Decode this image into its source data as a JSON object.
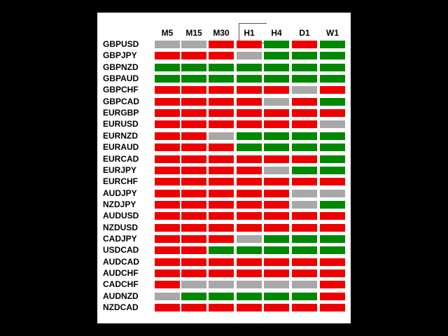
{
  "colors": {
    "red": "#ee0000",
    "green": "#008800",
    "gray": "#a8a8a8"
  },
  "timeframes": [
    "M5",
    "M15",
    "M30",
    "H1",
    "H4",
    "D1",
    "W1"
  ],
  "selected_timeframe": "H1",
  "rows": [
    {
      "pair": "GBPUSD",
      "states": [
        "gray",
        "gray",
        "red",
        "red",
        "green",
        "red",
        "green"
      ]
    },
    {
      "pair": "GBPJPY",
      "states": [
        "red",
        "red",
        "red",
        "gray",
        "green",
        "green",
        "green"
      ]
    },
    {
      "pair": "GBPNZD",
      "states": [
        "green",
        "green",
        "green",
        "green",
        "green",
        "green",
        "green"
      ]
    },
    {
      "pair": "GBPAUD",
      "states": [
        "green",
        "green",
        "green",
        "green",
        "green",
        "green",
        "green"
      ]
    },
    {
      "pair": "GBPCHF",
      "states": [
        "red",
        "red",
        "red",
        "red",
        "red",
        "gray",
        "red"
      ]
    },
    {
      "pair": "GBPCAD",
      "states": [
        "red",
        "red",
        "red",
        "red",
        "gray",
        "red",
        "green"
      ]
    },
    {
      "pair": "EURGBP",
      "states": [
        "red",
        "red",
        "red",
        "red",
        "red",
        "red",
        "red"
      ]
    },
    {
      "pair": "EURUSD",
      "states": [
        "red",
        "red",
        "red",
        "red",
        "red",
        "red",
        "gray"
      ]
    },
    {
      "pair": "EURNZD",
      "states": [
        "red",
        "red",
        "gray",
        "green",
        "green",
        "green",
        "green"
      ]
    },
    {
      "pair": "EURAUD",
      "states": [
        "red",
        "red",
        "red",
        "green",
        "green",
        "green",
        "green"
      ]
    },
    {
      "pair": "EURCAD",
      "states": [
        "red",
        "red",
        "red",
        "red",
        "red",
        "red",
        "green"
      ]
    },
    {
      "pair": "EURJPY",
      "states": [
        "red",
        "red",
        "red",
        "red",
        "gray",
        "green",
        "green"
      ]
    },
    {
      "pair": "EURCHF",
      "states": [
        "red",
        "red",
        "red",
        "red",
        "red",
        "red",
        "red"
      ]
    },
    {
      "pair": "AUDJPY",
      "states": [
        "red",
        "red",
        "red",
        "red",
        "red",
        "gray",
        "gray"
      ]
    },
    {
      "pair": "NZDJPY",
      "states": [
        "red",
        "red",
        "red",
        "red",
        "red",
        "gray",
        "green"
      ]
    },
    {
      "pair": "AUDUSD",
      "states": [
        "red",
        "red",
        "red",
        "red",
        "red",
        "red",
        "red"
      ]
    },
    {
      "pair": "NZDUSD",
      "states": [
        "red",
        "red",
        "red",
        "red",
        "red",
        "red",
        "red"
      ]
    },
    {
      "pair": "CADJPY",
      "states": [
        "red",
        "red",
        "red",
        "gray",
        "green",
        "green",
        "green"
      ]
    },
    {
      "pair": "USDCAD",
      "states": [
        "red",
        "red",
        "green",
        "green",
        "green",
        "green",
        "green"
      ]
    },
    {
      "pair": "AUDCAD",
      "states": [
        "red",
        "red",
        "red",
        "red",
        "red",
        "red",
        "red"
      ]
    },
    {
      "pair": "AUDCHF",
      "states": [
        "red",
        "red",
        "red",
        "red",
        "red",
        "red",
        "red"
      ]
    },
    {
      "pair": "CADCHF",
      "states": [
        "red",
        "gray",
        "gray",
        "gray",
        "gray",
        "gray",
        "red"
      ]
    },
    {
      "pair": "AUDNZD",
      "states": [
        "gray",
        "green",
        "green",
        "green",
        "green",
        "green",
        "red"
      ]
    },
    {
      "pair": "NZDCAD",
      "states": [
        "red",
        "red",
        "red",
        "red",
        "red",
        "red",
        "red"
      ]
    }
  ]
}
